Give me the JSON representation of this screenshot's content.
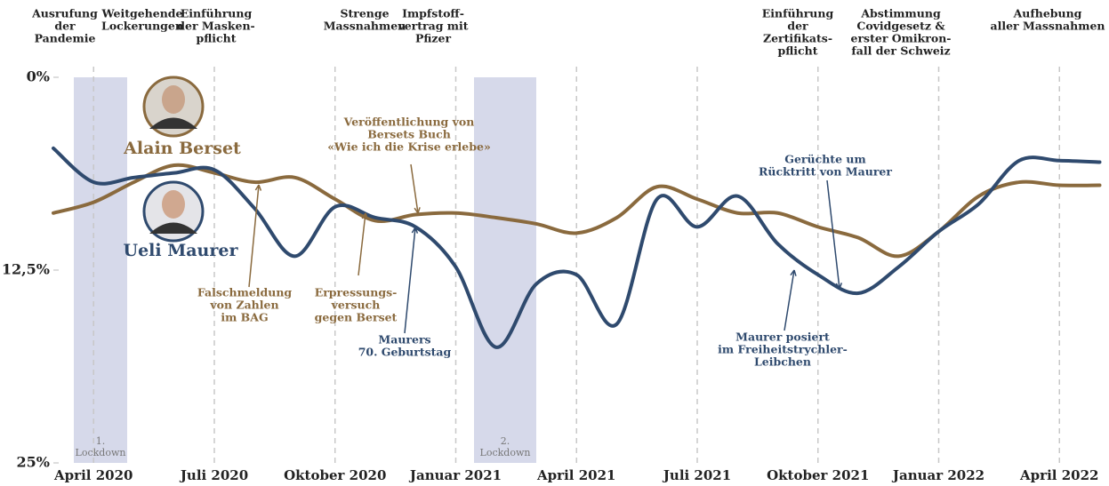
{
  "chart_data": {
    "type": "line",
    "x": [
      "2020-03",
      "2020-04",
      "2020-05",
      "2020-06",
      "2020-07",
      "2020-08",
      "2020-09",
      "2020-10",
      "2020-11",
      "2020-12",
      "2021-01",
      "2021-02",
      "2021-03",
      "2021-04",
      "2021-05",
      "2021-06",
      "2021-07",
      "2021-08",
      "2021-09",
      "2021-10",
      "2021-11",
      "2021-12",
      "2022-01",
      "2022-02",
      "2022-03",
      "2022-04",
      "2022-05"
    ],
    "series": [
      {
        "name": "Alain Berset",
        "color": "#8a6a3e",
        "values": [
          8.8,
          8.1,
          6.8,
          5.7,
          6.2,
          6.8,
          6.5,
          7.9,
          9.3,
          8.9,
          8.8,
          9.1,
          9.5,
          10.1,
          9.1,
          7.1,
          7.9,
          8.8,
          8.8,
          9.7,
          10.4,
          11.6,
          10.0,
          7.7,
          6.8,
          7.0,
          7.0
        ]
      },
      {
        "name": "Ueli Maurer",
        "color": "#2f4a6e",
        "values": [
          4.6,
          6.8,
          6.5,
          6.2,
          6.0,
          8.5,
          11.6,
          8.4,
          9.1,
          9.7,
          12.3,
          17.5,
          13.4,
          12.8,
          16.0,
          7.9,
          9.7,
          7.7,
          10.8,
          12.8,
          14.0,
          12.3,
          10.0,
          8.2,
          5.4,
          5.4,
          5.5
        ]
      }
    ],
    "ylim": [
      0,
      25
    ],
    "yticks": [
      {
        "value": 0,
        "label": "0%"
      },
      {
        "value": 12.5,
        "label": "12,5%"
      },
      {
        "value": 25,
        "label": "25%"
      }
    ],
    "inverted_y": true,
    "xticks": [
      {
        "value": "2020-04",
        "label": "April 2020"
      },
      {
        "value": "2020-07",
        "label": "Juli 2020"
      },
      {
        "value": "2020-10",
        "label": "Oktober 2020"
      },
      {
        "value": "2021-01",
        "label": "Januar 2021"
      },
      {
        "value": "2021-04",
        "label": "April 2021"
      },
      {
        "value": "2021-07",
        "label": "Juli 2021"
      },
      {
        "value": "2021-10",
        "label": "Oktober 2021"
      },
      {
        "value": "2022-01",
        "label": "Januar 2022"
      },
      {
        "value": "2022-04",
        "label": "April 2022"
      }
    ],
    "shaded_periods": [
      {
        "label": [
          "1.",
          "Lockdown"
        ]
      },
      {
        "label": [
          "2.",
          "Lockdown"
        ]
      }
    ],
    "events": [
      {
        "label": [
          "Ausrufung",
          "der",
          "Pandemie"
        ]
      },
      {
        "label": [
          "Weitgehende",
          "Lockerungen"
        ]
      },
      {
        "label": [
          "Einführung",
          "der Masken-",
          "pflicht"
        ]
      },
      {
        "label": [
          "Strenge",
          "Massnahmen"
        ]
      },
      {
        "label": [
          "Impfstoff-",
          "vertrag mit",
          "Pfizer"
        ]
      },
      {
        "label": [
          "Einführung",
          "der",
          "Zertifikats-",
          "pflicht"
        ]
      },
      {
        "label": [
          "Abstimmung",
          "Covidgesetz &",
          "erster Omikron-",
          "fall der Schweiz"
        ]
      },
      {
        "label": [
          "Aufhebung",
          "aller Massnahmen"
        ]
      }
    ],
    "annotations": [
      {
        "series": 0,
        "label": [
          "Falschmeldung",
          "von Zahlen",
          "im BAG"
        ]
      },
      {
        "series": 0,
        "label": [
          "Erpressungs-",
          "versuch",
          "gegen Berset"
        ]
      },
      {
        "series": 0,
        "label": [
          "Veröffentlichung von",
          "Bersets Buch",
          "«Wie ich die Krise erlebe»"
        ]
      },
      {
        "series": 1,
        "label": [
          "Maurers",
          "70. Geburtstag"
        ]
      },
      {
        "series": 1,
        "label": [
          "Gerüchte um",
          "Rücktritt von Maurer"
        ]
      },
      {
        "series": 1,
        "label": [
          "Maurer posiert",
          "im Freiheitstrychler-",
          "Leibchen"
        ]
      }
    ]
  }
}
